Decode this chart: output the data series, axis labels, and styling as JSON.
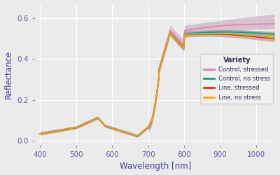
{
  "xlabel": "Wavelength [nm]",
  "ylabel": "Reflectance",
  "xlim": [
    385,
    1055
  ],
  "ylim": [
    -0.02,
    0.67
  ],
  "yticks": [
    0.0,
    0.2,
    0.4,
    0.6
  ],
  "xticks": [
    400,
    500,
    600,
    700,
    800,
    900,
    1000
  ],
  "plot_bg": "#ebebeb",
  "fig_bg": "#ebebeb",
  "grid_color": "#ffffff",
  "legend_title": "Variety",
  "legend_entries": [
    "Control, stressed",
    "Control, no stress",
    "Line, stressed",
    "Line, no stress"
  ],
  "line_colors": [
    "#e87ab0",
    "#00aa80",
    "#e83000",
    "#f5a800"
  ],
  "axis_label_color": "#4040a0",
  "tick_label_color": "#6060a0",
  "legend_text_color": "#333355",
  "legend_bg": "#f0f0f0"
}
